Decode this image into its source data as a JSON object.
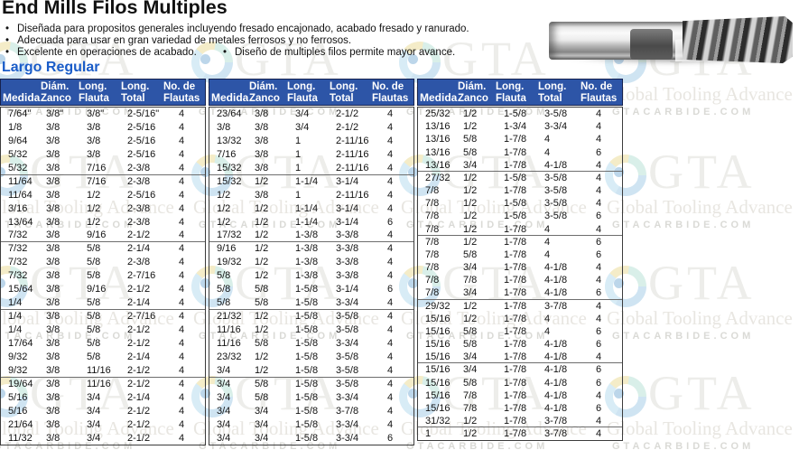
{
  "page": {
    "title": "End Mills Filos Multiples",
    "bullet_char": "•",
    "bullets": [
      "Diseñada para propositos generales incluyendo fresado encajonado, acabado fresado y ranurado.",
      "Adecuada para usar en gran variedad de metales ferrosos y no ferrosos.",
      "Excelente en operaciones de acabado.",
      "Diseño de multiples filos permite mayor avance."
    ],
    "section_label": "Largo Regular"
  },
  "columns": [
    {
      "l1": "",
      "l2": "Medida"
    },
    {
      "l1": "Diám.",
      "l2": "Zanco"
    },
    {
      "l1": "Long.",
      "l2": "Flauta"
    },
    {
      "l1": "Long.",
      "l2": "Total"
    },
    {
      "l1": "No. de",
      "l2": "Flautas"
    }
  ],
  "group_size": 5,
  "tables": [
    {
      "rows": [
        [
          "7/64\"",
          "3/8\"",
          "3/8\"",
          "2-5/16\"",
          "4"
        ],
        [
          "1/8",
          "3/8",
          "3/8",
          "2-5/16",
          "4"
        ],
        [
          "9/64",
          "3/8",
          "3/8",
          "2-5/16",
          "4"
        ],
        [
          "5/32",
          "3/8",
          "3/8",
          "2-5/16",
          "4"
        ],
        [
          "5/32",
          "3/8",
          "7/16",
          "2-3/8",
          "4"
        ],
        [
          "11/64",
          "3/8",
          "7/16",
          "2-3/8",
          "4"
        ],
        [
          "11/64",
          "3/8",
          "1/2",
          "2-5/16",
          "4"
        ],
        [
          "3/16",
          "3/8",
          "1/2",
          "2-3/8",
          "4"
        ],
        [
          "13/64",
          "3/8",
          "1/2",
          "2-3/8",
          "4"
        ],
        [
          "7/32",
          "3/8",
          "9/16",
          "2-1/2",
          "4"
        ],
        [
          "7/32",
          "3/8",
          "5/8",
          "2-1/4",
          "4"
        ],
        [
          "7/32",
          "3/8",
          "5/8",
          "2-3/8",
          "4"
        ],
        [
          "7/32",
          "3/8",
          "5/8",
          "2-7/16",
          "4"
        ],
        [
          "15/64",
          "3/8",
          "9/16",
          "2-1/2",
          "4"
        ],
        [
          "1/4",
          "3/8",
          "5/8",
          "2-1/4",
          "4"
        ],
        [
          "1/4",
          "3/8",
          "5/8",
          "2-7/16",
          "4"
        ],
        [
          "1/4",
          "3/8",
          "5/8",
          "2-1/2",
          "4"
        ],
        [
          "17/64",
          "3/8",
          "5/8",
          "2-1/2",
          "4"
        ],
        [
          "9/32",
          "3/8",
          "5/8",
          "2-1/4",
          "4"
        ],
        [
          "9/32",
          "3/8",
          "11/16",
          "2-1/2",
          "4"
        ],
        [
          "19/64",
          "3/8",
          "11/16",
          "2-1/2",
          "4"
        ],
        [
          "5/16",
          "3/8",
          "3/4",
          "2-1/4",
          "4"
        ],
        [
          "5/16",
          "3/8",
          "3/4",
          "2-1/2",
          "4"
        ],
        [
          "21/64",
          "3/8",
          "3/4",
          "2-1/2",
          "4"
        ],
        [
          "11/32",
          "3/8",
          "3/4",
          "2-1/2",
          "4"
        ]
      ]
    },
    {
      "rows": [
        [
          "23/64",
          "3/8",
          "3/4",
          "2-1/2",
          "4"
        ],
        [
          "3/8",
          "3/8",
          "3/4",
          "2-1/2",
          "4"
        ],
        [
          "13/32",
          "3/8",
          "1",
          "2-11/16",
          "4"
        ],
        [
          "7/16",
          "3/8",
          "1",
          "2-11/16",
          "4"
        ],
        [
          "15/32",
          "3/8",
          "1",
          "2-11/16",
          "4"
        ],
        [
          "15/32",
          "1/2",
          "1-1/4",
          "3-1/4",
          "4"
        ],
        [
          "1/2",
          "3/8",
          "1",
          "2-11/16",
          "4"
        ],
        [
          "1/2",
          "1/2",
          "1-1/4",
          "3-1/4",
          "4"
        ],
        [
          "1/2",
          "1/2",
          "1-1/4",
          "3-1/4",
          "6"
        ],
        [
          "17/32",
          "1/2",
          "1-3/8",
          "3-3/8",
          "4"
        ],
        [
          "9/16",
          "1/2",
          "1-3/8",
          "3-3/8",
          "4"
        ],
        [
          "19/32",
          "1/2",
          "1-3/8",
          "3-3/8",
          "4"
        ],
        [
          "5/8",
          "1/2",
          "1-3/8",
          "3-3/8",
          "4"
        ],
        [
          "5/8",
          "5/8",
          "1-5/8",
          "3-1/4",
          "6"
        ],
        [
          "5/8",
          "5/8",
          "1-5/8",
          "3-3/4",
          "4"
        ],
        [
          "21/32",
          "1/2",
          "1-5/8",
          "3-5/8",
          "4"
        ],
        [
          "11/16",
          "1/2",
          "1-5/8",
          "3-5/8",
          "4"
        ],
        [
          "11/16",
          "5/8",
          "1-5/8",
          "3-3/4",
          "4"
        ],
        [
          "23/32",
          "1/2",
          "1-5/8",
          "3-5/8",
          "4"
        ],
        [
          "3/4",
          "1/2",
          "1-5/8",
          "3-5/8",
          "4"
        ],
        [
          "3/4",
          "5/8",
          "1-5/8",
          "3-5/8",
          "4"
        ],
        [
          "3/4",
          "5/8",
          "1-5/8",
          "3-3/4",
          "4"
        ],
        [
          "3/4",
          "3/4",
          "1-5/8",
          "3-7/8",
          "4"
        ],
        [
          "3/4",
          "3/4",
          "1-5/8",
          "3-3/4",
          "4"
        ],
        [
          "3/4",
          "3/4",
          "1-5/8",
          "3-3/4",
          "6"
        ]
      ]
    },
    {
      "rows": [
        [
          "25/32",
          "1/2",
          "1-5/8",
          "3-5/8",
          "4"
        ],
        [
          "13/16",
          "1/2",
          "1-3/4",
          "3-3/4",
          "4"
        ],
        [
          "13/16",
          "5/8",
          "1-7/8",
          "4",
          "4"
        ],
        [
          "13/16",
          "5/8",
          "1-7/8",
          "4",
          "6"
        ],
        [
          "13/16",
          "3/4",
          "1-7/8",
          "4-1/8",
          "4"
        ],
        [
          "27/32",
          "1/2",
          "1-5/8",
          "3-5/8",
          "4"
        ],
        [
          "7/8",
          "1/2",
          "1-7/8",
          "3-5/8",
          "4"
        ],
        [
          "7/8",
          "1/2",
          "1-5/8",
          "3-5/8",
          "4"
        ],
        [
          "7/8",
          "1/2",
          "1-5/8",
          "3-5/8",
          "6"
        ],
        [
          "7/8",
          "1/2",
          "1-7/8",
          "4",
          "4"
        ],
        [
          "7/8",
          "1/2",
          "1-7/8",
          "4",
          "6"
        ],
        [
          "7/8",
          "5/8",
          "1-7/8",
          "4",
          "6"
        ],
        [
          "7/8",
          "3/4",
          "1-7/8",
          "4-1/8",
          "4"
        ],
        [
          "7/8",
          "7/8",
          "1-7/8",
          "4-1/8",
          "4"
        ],
        [
          "7/8",
          "3/4",
          "1-7/8",
          "4-1/8",
          "6"
        ],
        [
          "29/32",
          "1/2",
          "1-7/8",
          "3-7/8",
          "4"
        ],
        [
          "15/16",
          "1/2",
          "1-7/8",
          "4",
          "4"
        ],
        [
          "15/16",
          "5/8",
          "1-7/8",
          "4",
          "6"
        ],
        [
          "15/16",
          "5/8",
          "1-7/8",
          "4-1/8",
          "6"
        ],
        [
          "15/16",
          "3/4",
          "1-7/8",
          "4-1/8",
          "4"
        ],
        [
          "15/16",
          "3/4",
          "1-7/8",
          "4-1/8",
          "6"
        ],
        [
          "15/16",
          "5/8",
          "1-7/8",
          "4-1/8",
          "6"
        ],
        [
          "15/16",
          "7/8",
          "1-7/8",
          "4-1/8",
          "4"
        ],
        [
          "15/16",
          "7/8",
          "1-7/8",
          "4-1/8",
          "6"
        ],
        [
          "31/32",
          "1/2",
          "1-7/8",
          "3-7/8",
          "4"
        ],
        [
          "1",
          "1/2",
          "1-7/8",
          "3-7/8",
          "4"
        ]
      ]
    }
  ],
  "watermark": {
    "gta": "GTA",
    "tagline": "Global Tooling Advance",
    "domain": "GTACARBIDE.COM"
  },
  "colors": {
    "header_bg": "#2d55a7",
    "header_border": "#16224e",
    "accent": "#1a5cc8",
    "table_border": "#3c3c3c",
    "section_line": "#6e6e6e",
    "text": "#111111"
  }
}
